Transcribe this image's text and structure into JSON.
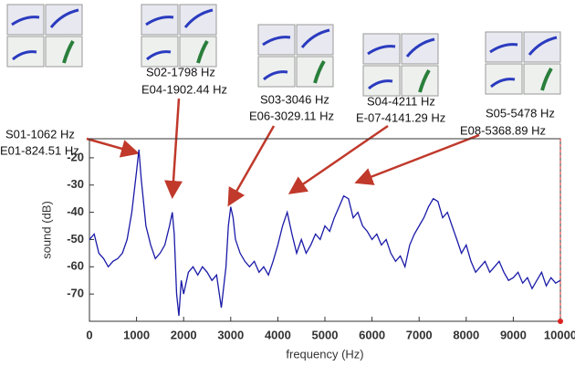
{
  "chart_data": {
    "type": "line",
    "xlabel": "frequency (Hz)",
    "ylabel": "sound (dB)",
    "annotations": [
      "S01-1062 Hz",
      "E01-824.51 Hz",
      "S02-1798 Hz",
      "E04-1902.44 Hz",
      "S03-3046 Hz",
      "E06-3029.11 Hz",
      "S04-4211 Hz",
      "E-07-4141.29 Hz",
      "S05-5478 Hz",
      "E08-5368.89 Hz"
    ],
    "x": [
      0,
      100,
      200,
      300,
      400,
      500,
      600,
      700,
      800,
      900,
      1000,
      1050,
      1100,
      1200,
      1300,
      1400,
      1500,
      1600,
      1700,
      1760,
      1800,
      1850,
      1900,
      1950,
      2000,
      2100,
      2200,
      2300,
      2400,
      2500,
      2600,
      2700,
      2800,
      2900,
      2950,
      3000,
      3050,
      3100,
      3200,
      3300,
      3400,
      3500,
      3600,
      3700,
      3800,
      3900,
      4000,
      4100,
      4200,
      4300,
      4400,
      4500,
      4600,
      4700,
      4800,
      4900,
      5000,
      5100,
      5200,
      5300,
      5400,
      5500,
      5600,
      5700,
      5800,
      5900,
      6000,
      6100,
      6200,
      6300,
      6400,
      6500,
      6600,
      6700,
      6800,
      6900,
      7000,
      7100,
      7200,
      7300,
      7400,
      7500,
      7600,
      7700,
      7800,
      7900,
      8000,
      8100,
      8200,
      8300,
      8400,
      8500,
      8600,
      8700,
      8800,
      8900,
      9000,
      9100,
      9200,
      9300,
      9400,
      9500,
      9600,
      9700,
      9800,
      9900,
      10000
    ],
    "values": [
      -50,
      -48,
      -55,
      -57,
      -60,
      -58,
      -57,
      -55,
      -50,
      -40,
      -25,
      -17,
      -28,
      -45,
      -52,
      -57,
      -55,
      -52,
      -45,
      -40,
      -48,
      -70,
      -78,
      -65,
      -70,
      -62,
      -60,
      -63,
      -60,
      -62,
      -65,
      -63,
      -75,
      -60,
      -45,
      -38,
      -42,
      -50,
      -55,
      -58,
      -60,
      -58,
      -62,
      -60,
      -63,
      -58,
      -52,
      -45,
      -40,
      -48,
      -55,
      -50,
      -55,
      -52,
      -48,
      -50,
      -45,
      -47,
      -42,
      -38,
      -34,
      -35,
      -42,
      -40,
      -45,
      -47,
      -50,
      -48,
      -52,
      -50,
      -55,
      -58,
      -56,
      -60,
      -52,
      -48,
      -45,
      -42,
      -38,
      -35,
      -36,
      -42,
      -40,
      -45,
      -50,
      -55,
      -52,
      -58,
      -62,
      -60,
      -58,
      -62,
      -60,
      -58,
      -62,
      -65,
      -64,
      -62,
      -66,
      -64,
      -68,
      -65,
      -62,
      -67,
      -64,
      -66,
      -65
    ],
    "color": "#1a1aa8",
    "xlim": [
      0,
      10000
    ],
    "ylim": [
      -80,
      -13
    ],
    "xticks": [
      0,
      1000,
      2000,
      3000,
      4000,
      5000,
      6000,
      7000,
      8000,
      9000,
      10000
    ],
    "yticks": [
      -20,
      -30,
      -40,
      -50,
      -60,
      -70
    ]
  }
}
